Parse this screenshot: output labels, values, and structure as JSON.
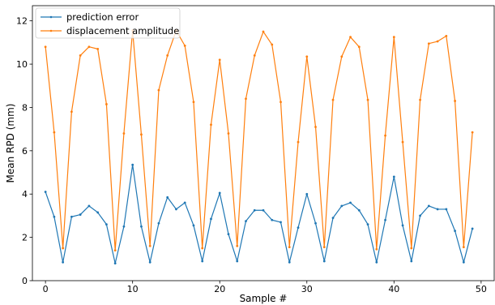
{
  "chart_data": {
    "type": "line",
    "xlabel": "Sample #",
    "ylabel": "Mean RPD (mm)",
    "xlim": [
      -1.5,
      51.5
    ],
    "ylim": [
      0,
      12.7
    ],
    "x_ticks": [
      0,
      10,
      20,
      30,
      40,
      50
    ],
    "y_ticks": [
      0,
      2,
      4,
      6,
      8,
      10,
      12
    ],
    "legend_position": "top-left",
    "grid": false,
    "x": [
      0,
      1,
      2,
      3,
      4,
      5,
      6,
      7,
      8,
      9,
      10,
      11,
      12,
      13,
      14,
      15,
      16,
      17,
      18,
      19,
      20,
      21,
      22,
      23,
      24,
      25,
      26,
      27,
      28,
      29,
      30,
      31,
      32,
      33,
      34,
      35,
      36,
      37,
      38,
      39,
      40,
      41,
      42,
      43,
      44,
      45,
      46,
      47,
      48,
      49
    ],
    "series": [
      {
        "name": "prediction error",
        "color": "#1f77b4",
        "values": [
          4.1,
          2.95,
          0.85,
          2.95,
          3.05,
          3.45,
          3.15,
          2.6,
          0.8,
          2.5,
          5.35,
          2.5,
          0.85,
          2.65,
          3.85,
          3.3,
          3.6,
          2.55,
          0.9,
          2.85,
          4.05,
          2.15,
          0.9,
          2.75,
          3.25,
          3.25,
          2.8,
          2.7,
          0.85,
          2.45,
          4.0,
          2.65,
          0.9,
          2.9,
          3.45,
          3.6,
          3.25,
          2.6,
          0.85,
          2.8,
          4.8,
          2.55,
          0.9,
          3.0,
          3.45,
          3.3,
          3.3,
          2.3,
          0.85,
          2.4
        ]
      },
      {
        "name": "displacement amplitude",
        "color": "#ff7f0e",
        "values": [
          10.8,
          6.85,
          1.5,
          7.8,
          10.4,
          10.8,
          10.7,
          8.15,
          1.4,
          6.8,
          11.55,
          6.75,
          1.6,
          8.8,
          10.4,
          11.55,
          10.85,
          8.25,
          1.5,
          7.2,
          10.2,
          6.8,
          1.6,
          8.4,
          10.4,
          11.5,
          10.9,
          8.25,
          1.55,
          6.4,
          10.35,
          7.1,
          1.55,
          8.35,
          10.35,
          11.25,
          10.8,
          8.35,
          1.45,
          6.7,
          11.25,
          6.4,
          1.5,
          8.35,
          10.95,
          11.05,
          11.3,
          8.3,
          1.55,
          6.85
        ]
      }
    ]
  }
}
